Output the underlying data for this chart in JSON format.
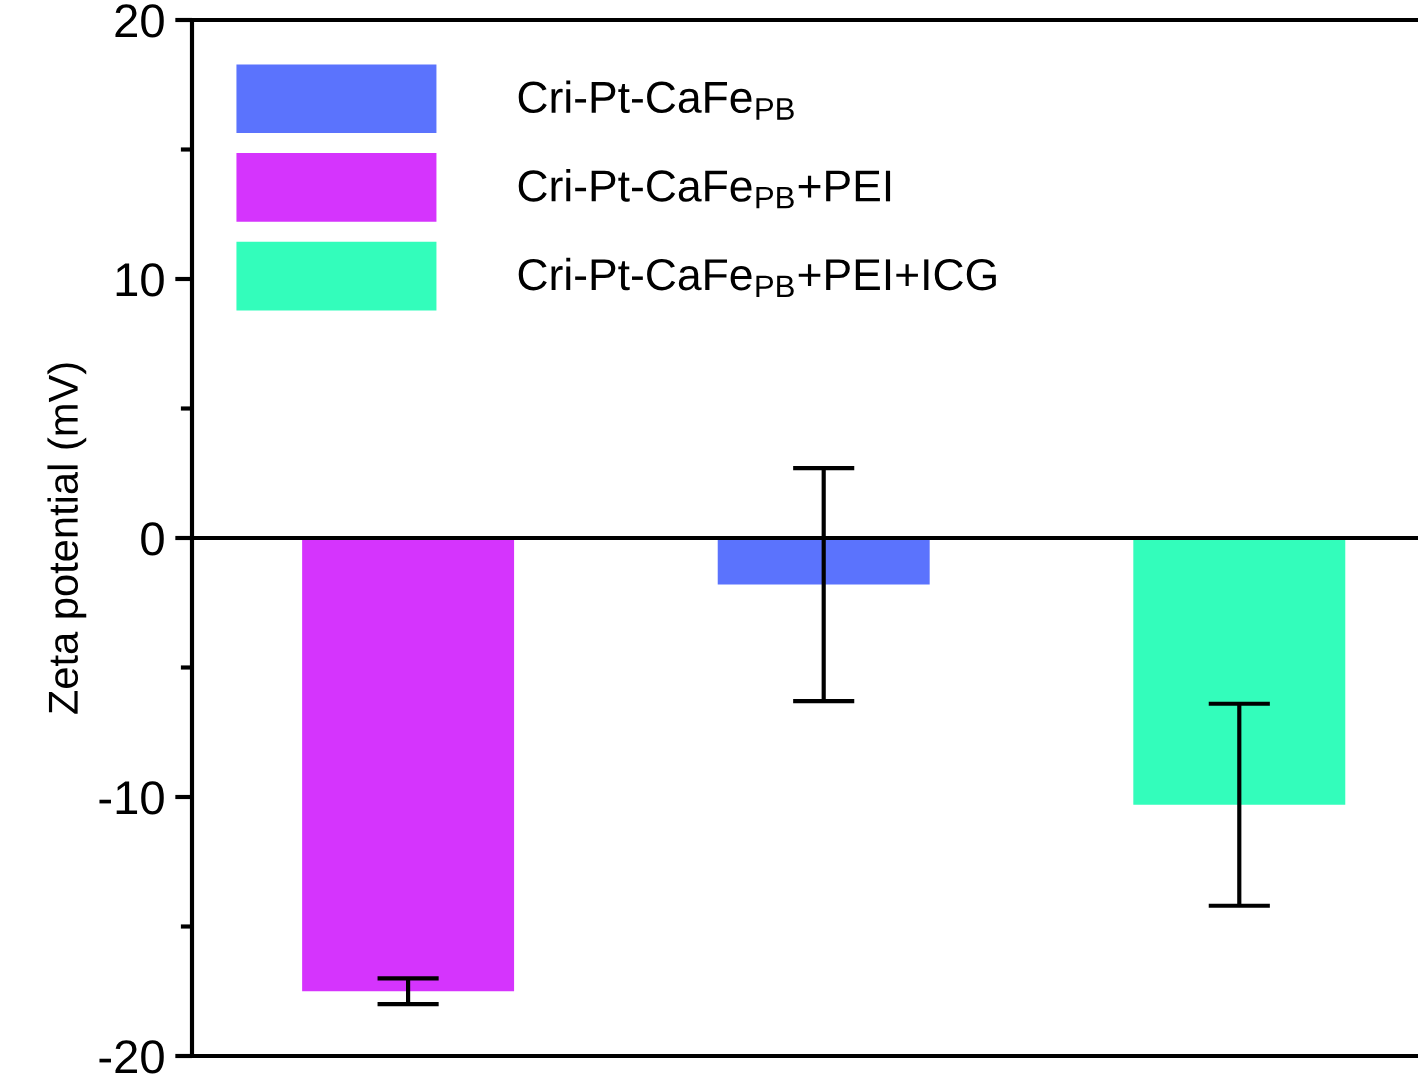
{
  "chart_data": {
    "type": "bar",
    "ylabel": "Zeta potential (mV)",
    "categories": [
      null,
      null,
      null
    ],
    "series": [
      {
        "name": "Cri-Pt-CaFe$_{PB}$",
        "color": "#5b73fd",
        "values": [
          null,
          -1.8,
          null
        ],
        "errors": [
          null,
          4.5,
          null
        ]
      },
      {
        "name": "Cri-Pt-CaFe$_{PB}$+PEI",
        "color": "#d534fd",
        "values": [
          -17.5,
          null,
          null
        ],
        "errors": [
          0.5,
          null,
          null
        ]
      },
      {
        "name": "Cri-Pt-CaFe$_{PB}$+PEI+ICG",
        "color": "#33fdbb",
        "values": [
          null,
          null,
          -10.3
        ],
        "errors": [
          null,
          null,
          3.9
        ]
      }
    ],
    "ylim": [
      -20,
      20
    ],
    "yticks": [
      -20,
      -10,
      0,
      10,
      20
    ],
    "ref_lines": [
      {
        "axis": "y",
        "value": 0,
        "color": "#000000"
      }
    ],
    "tick_labels": "y",
    "grid": false,
    "legend": "top left"
  }
}
